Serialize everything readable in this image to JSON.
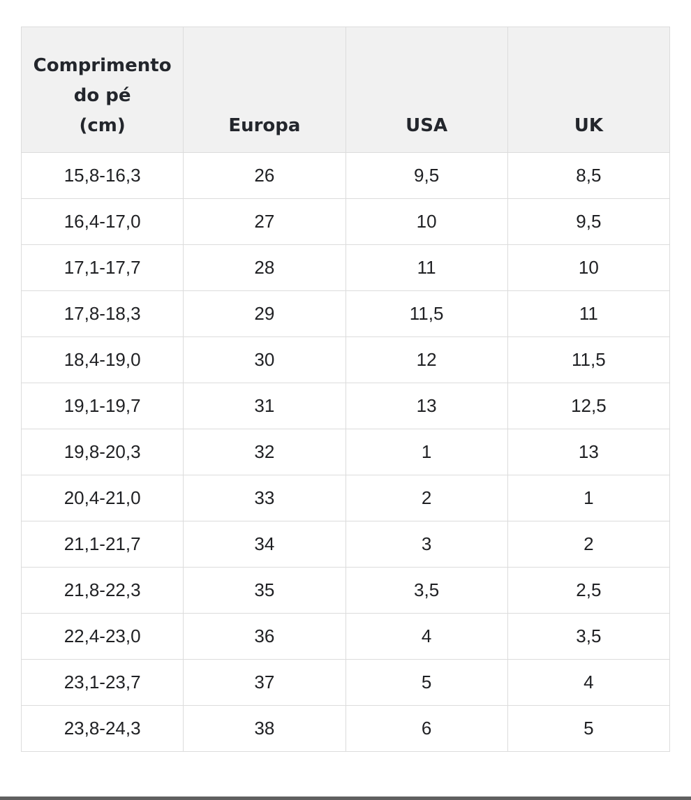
{
  "chart_data": {
    "type": "table",
    "columns": [
      "Comprimento\ndo pé\n(cm)",
      "Europa",
      "USA",
      "UK"
    ],
    "column_keys": [
      "foot-length-cm",
      "europa",
      "usa",
      "uk"
    ],
    "rows": [
      [
        "15,8-16,3",
        "26",
        "9,5",
        "8,5"
      ],
      [
        "16,4-17,0",
        "27",
        "10",
        "9,5"
      ],
      [
        "17,1-17,7",
        "28",
        "11",
        "10"
      ],
      [
        "17,8-18,3",
        "29",
        "11,5",
        "11"
      ],
      [
        "18,4-19,0",
        "30",
        "12",
        "11,5"
      ],
      [
        "19,1-19,7",
        "31",
        "13",
        "12,5"
      ],
      [
        "19,8-20,3",
        "32",
        "1",
        "13"
      ],
      [
        "20,4-21,0",
        "33",
        "2",
        "1"
      ],
      [
        "21,1-21,7",
        "34",
        "3",
        "2"
      ],
      [
        "21,8-22,3",
        "35",
        "3,5",
        "2,5"
      ],
      [
        "22,4-23,0",
        "36",
        "4",
        "3,5"
      ],
      [
        "23,1-23,7",
        "37",
        "5",
        "4"
      ],
      [
        "23,8-24,3",
        "38",
        "6",
        "5"
      ]
    ]
  },
  "colors": {
    "header_bg": "#f1f1f1",
    "border": "#dcdcdc",
    "text": "#202124",
    "header_text": "#23262c",
    "bottom_bar": "#606060",
    "page_bg": "#ffffff"
  }
}
